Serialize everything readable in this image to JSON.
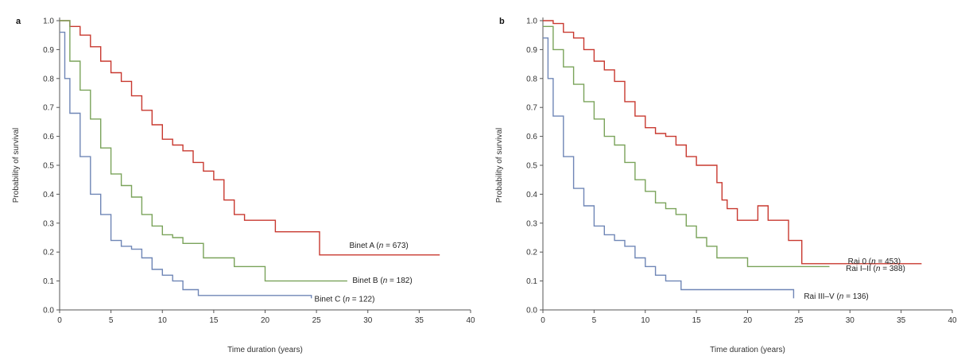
{
  "chart_data": [
    {
      "type": "line",
      "panel": "a",
      "xlabel": "Time duration (years)",
      "ylabel": "Probability of survival",
      "xlim": [
        0,
        40
      ],
      "ylim": [
        0,
        1
      ],
      "xticks": [
        "0",
        "5",
        "10",
        "15",
        "20",
        "25",
        "30",
        "35",
        "40"
      ],
      "yticks": [
        "0.0",
        "0.1",
        "0.2",
        "0.3",
        "0.4",
        "0.5",
        "0.6",
        "0.7",
        "0.8",
        "0.9",
        "1.0"
      ],
      "grid": false,
      "series": [
        {
          "name": "Binet A (n = 673)",
          "name_parts": [
            "Binet A (",
            "n",
            " = 673)"
          ],
          "color": "#c8382f",
          "x": [
            0,
            1,
            2,
            3,
            4,
            5,
            6,
            7,
            8,
            9,
            10,
            11,
            12,
            13,
            14,
            15,
            16,
            17,
            18,
            19,
            20,
            21,
            25.3,
            37
          ],
          "y": [
            1.0,
            0.98,
            0.95,
            0.91,
            0.86,
            0.82,
            0.79,
            0.74,
            0.69,
            0.64,
            0.59,
            0.57,
            0.55,
            0.51,
            0.48,
            0.45,
            0.38,
            0.33,
            0.31,
            0.31,
            0.31,
            0.27,
            0.19,
            0.19
          ]
        },
        {
          "name": "Binet B (n = 182)",
          "name_parts": [
            "Binet B (",
            "n",
            " = 182)"
          ],
          "color": "#7aa35a",
          "x": [
            0,
            1,
            2,
            3,
            4,
            5,
            6,
            7,
            8,
            9,
            10,
            11,
            12,
            14,
            17,
            20,
            28
          ],
          "y": [
            1.0,
            0.86,
            0.76,
            0.66,
            0.56,
            0.47,
            0.43,
            0.39,
            0.33,
            0.29,
            0.26,
            0.25,
            0.23,
            0.18,
            0.15,
            0.1,
            0.1
          ]
        },
        {
          "name": "Binet C (n = 122)",
          "name_parts": [
            "Binet C (",
            "n",
            " = 122)"
          ],
          "color": "#6f86b6",
          "x": [
            0,
            0.5,
            1,
            2,
            3,
            4,
            5,
            6,
            7,
            8,
            9,
            10,
            11,
            12,
            13.5,
            24.5
          ],
          "y": [
            0.96,
            0.8,
            0.68,
            0.53,
            0.4,
            0.33,
            0.24,
            0.22,
            0.21,
            0.18,
            0.14,
            0.12,
            0.1,
            0.07,
            0.05,
            0.04
          ]
        }
      ],
      "label_positions": [
        {
          "x": 28.2,
          "y": 0.225
        },
        {
          "x": 28.5,
          "y": 0.105
        },
        {
          "x": 24.8,
          "y": 0.04
        }
      ]
    },
    {
      "type": "line",
      "panel": "b",
      "xlabel": "Time duration (years)",
      "ylabel": "Probability of survival",
      "xlim": [
        0,
        40
      ],
      "ylim": [
        0,
        1
      ],
      "xticks": [
        "0",
        "5",
        "10",
        "15",
        "20",
        "25",
        "30",
        "35",
        "40"
      ],
      "yticks": [
        "0.0",
        "0.1",
        "0.2",
        "0.3",
        "0.4",
        "0.5",
        "0.6",
        "0.7",
        "0.8",
        "0.9",
        "1.0"
      ],
      "grid": false,
      "series": [
        {
          "name": "Rai 0 (n = 453)",
          "name_parts": [
            "Rai 0 (",
            "n",
            " = 453)"
          ],
          "color": "#c8382f",
          "x": [
            0,
            1,
            2,
            3,
            4,
            5,
            6,
            7,
            8,
            9,
            10,
            11,
            12,
            13,
            14,
            15,
            16,
            17,
            17.5,
            18,
            19,
            20,
            21,
            22,
            24,
            25.3,
            37
          ],
          "y": [
            1.0,
            0.99,
            0.96,
            0.94,
            0.9,
            0.86,
            0.83,
            0.79,
            0.72,
            0.67,
            0.63,
            0.61,
            0.6,
            0.57,
            0.53,
            0.5,
            0.5,
            0.44,
            0.38,
            0.35,
            0.31,
            0.31,
            0.36,
            0.31,
            0.24,
            0.16,
            0.16
          ]
        },
        {
          "name": "Rai I–II (n = 388)",
          "name_parts": [
            "Rai I–II (",
            "n",
            " = 388)"
          ],
          "color": "#7aa35a",
          "x": [
            0,
            1,
            2,
            3,
            4,
            5,
            6,
            7,
            8,
            9,
            10,
            11,
            12,
            13,
            14,
            15,
            16,
            17,
            20,
            28
          ],
          "y": [
            0.98,
            0.9,
            0.84,
            0.78,
            0.72,
            0.66,
            0.6,
            0.57,
            0.51,
            0.45,
            0.41,
            0.37,
            0.35,
            0.33,
            0.29,
            0.25,
            0.22,
            0.18,
            0.15,
            0.15
          ]
        },
        {
          "name": "Rai III–V (n = 136)",
          "name_parts": [
            "Rai III–V (",
            "n",
            " = 136)"
          ],
          "color": "#6f86b6",
          "x": [
            0,
            0.5,
            1,
            2,
            3,
            4,
            5,
            6,
            7,
            8,
            9,
            10,
            11,
            12,
            13.5,
            24.5
          ],
          "y": [
            0.94,
            0.8,
            0.67,
            0.53,
            0.42,
            0.36,
            0.29,
            0.26,
            0.24,
            0.22,
            0.18,
            0.15,
            0.12,
            0.1,
            0.07,
            0.04
          ]
        }
      ],
      "label_positions": [
        {
          "x": 29.8,
          "y": 0.17
        },
        {
          "x": 29.6,
          "y": 0.145
        },
        {
          "x": 25.5,
          "y": 0.05
        }
      ]
    }
  ]
}
